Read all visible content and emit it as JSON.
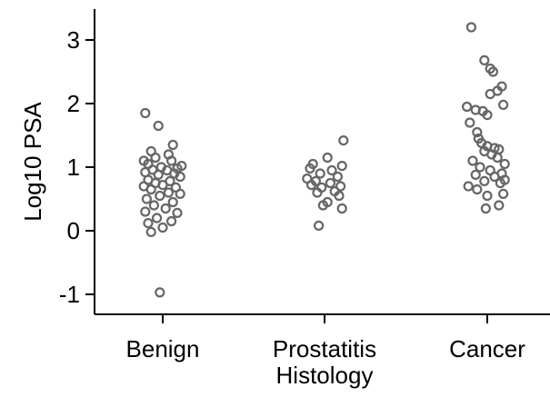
{
  "chart_data": {
    "type": "scatter",
    "title": "",
    "xlabel": "Histology",
    "ylabel": "Log10 PSA",
    "categories": [
      "Benign",
      "Prostatitis",
      "Cancer"
    ],
    "yticks": [
      -1,
      0,
      1,
      2,
      3
    ],
    "ylim": [
      -1.3,
      3.5
    ],
    "grid": false,
    "marker": {
      "shape": "hollow-circle",
      "color": "#666666"
    },
    "series": [
      {
        "category": "Benign",
        "points": [
          [
            -0.12,
            1.85
          ],
          [
            -0.03,
            1.65
          ],
          [
            0.07,
            1.35
          ],
          [
            -0.08,
            1.25
          ],
          [
            0.04,
            1.2
          ],
          [
            -0.05,
            1.15
          ],
          [
            -0.13,
            1.1
          ],
          [
            0.06,
            1.1
          ],
          [
            -0.1,
            1.05
          ],
          [
            0.13,
            1.02
          ],
          [
            -0.01,
            1.0
          ],
          [
            0.1,
            0.98
          ],
          [
            -0.07,
            0.96
          ],
          [
            0.03,
            0.95
          ],
          [
            -0.12,
            0.92
          ],
          [
            0.08,
            0.9
          ],
          [
            -0.03,
            0.88
          ],
          [
            0.12,
            0.85
          ],
          [
            -0.1,
            0.8
          ],
          [
            0.05,
            0.78
          ],
          [
            -0.05,
            0.75
          ],
          [
            0.0,
            0.72
          ],
          [
            -0.13,
            0.7
          ],
          [
            0.09,
            0.68
          ],
          [
            -0.08,
            0.65
          ],
          [
            0.04,
            0.6
          ],
          [
            0.12,
            0.58
          ],
          [
            -0.02,
            0.55
          ],
          [
            -0.11,
            0.5
          ],
          [
            0.07,
            0.45
          ],
          [
            -0.06,
            0.4
          ],
          [
            0.02,
            0.35
          ],
          [
            -0.12,
            0.3
          ],
          [
            0.1,
            0.28
          ],
          [
            -0.04,
            0.2
          ],
          [
            0.06,
            0.15
          ],
          [
            -0.1,
            0.12
          ],
          [
            0.0,
            0.05
          ],
          [
            -0.08,
            -0.02
          ],
          [
            -0.02,
            -0.97
          ]
        ]
      },
      {
        "category": "Prostatitis",
        "points": [
          [
            0.13,
            1.42
          ],
          [
            0.02,
            1.15
          ],
          [
            -0.08,
            1.05
          ],
          [
            0.12,
            1.02
          ],
          [
            -0.1,
            0.98
          ],
          [
            0.05,
            0.95
          ],
          [
            -0.03,
            0.9
          ],
          [
            0.09,
            0.85
          ],
          [
            -0.12,
            0.82
          ],
          [
            -0.06,
            0.78
          ],
          [
            0.04,
            0.75
          ],
          [
            -0.09,
            0.72
          ],
          [
            0.11,
            0.7
          ],
          [
            -0.02,
            0.68
          ],
          [
            0.07,
            0.62
          ],
          [
            -0.05,
            0.6
          ],
          [
            0.1,
            0.55
          ],
          [
            0.02,
            0.45
          ],
          [
            -0.01,
            0.4
          ],
          [
            0.12,
            0.35
          ],
          [
            -0.04,
            0.08
          ]
        ]
      },
      {
        "category": "Cancer",
        "points": [
          [
            -0.11,
            3.2
          ],
          [
            -0.02,
            2.68
          ],
          [
            0.02,
            2.55
          ],
          [
            0.04,
            2.5
          ],
          [
            0.1,
            2.27
          ],
          [
            0.07,
            2.2
          ],
          [
            0.02,
            2.15
          ],
          [
            -0.14,
            1.95
          ],
          [
            -0.08,
            1.9
          ],
          [
            0.11,
            1.98
          ],
          [
            -0.03,
            1.88
          ],
          [
            0.0,
            1.82
          ],
          [
            -0.12,
            1.7
          ],
          [
            -0.07,
            1.55
          ],
          [
            -0.06,
            1.45
          ],
          [
            -0.04,
            1.38
          ],
          [
            0.0,
            1.33
          ],
          [
            0.05,
            1.3
          ],
          [
            0.08,
            1.28
          ],
          [
            -0.02,
            1.25
          ],
          [
            0.03,
            1.2
          ],
          [
            0.07,
            1.15
          ],
          [
            -0.1,
            1.1
          ],
          [
            -0.05,
            1.0
          ],
          [
            0.12,
            1.05
          ],
          [
            0.02,
            0.95
          ],
          [
            0.1,
            0.9
          ],
          [
            -0.08,
            0.88
          ],
          [
            0.05,
            0.85
          ],
          [
            0.12,
            0.8
          ],
          [
            -0.02,
            0.78
          ],
          [
            0.09,
            0.75
          ],
          [
            -0.13,
            0.7
          ],
          [
            -0.07,
            0.65
          ],
          [
            0.11,
            0.58
          ],
          [
            0.0,
            0.55
          ],
          [
            0.08,
            0.4
          ],
          [
            -0.01,
            0.35
          ]
        ]
      }
    ]
  }
}
